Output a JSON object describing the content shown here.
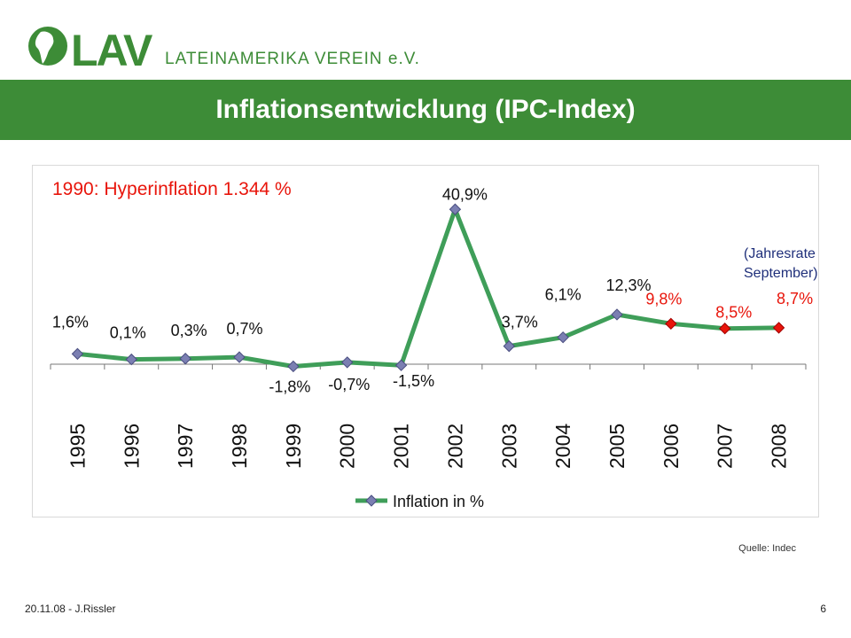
{
  "header": {
    "logo_text": "LAV",
    "org_name": "LATEINAMERIKA VEREIN e.V.",
    "title": "Inflationsentwicklung (IPC-Index)"
  },
  "colors": {
    "brand_green": "#3d8c37",
    "line_green": "#3f9e59",
    "marker_blue": "#7b7fb2",
    "highlight_red": "#e8150b"
  },
  "chart_data": {
    "type": "line",
    "title": "",
    "xlabel": "",
    "ylabel": "",
    "legend_position": "bottom",
    "grid": false,
    "categories": [
      "1995",
      "1996",
      "1997",
      "1998",
      "1999",
      "2000",
      "2001",
      "2002",
      "2003",
      "2004",
      "2005",
      "2006",
      "2007",
      "2008"
    ],
    "series": [
      {
        "name": "Inflation in  %",
        "values": [
          1.6,
          0.1,
          0.3,
          0.7,
          -1.8,
          -0.7,
          -1.5,
          40.9,
          3.7,
          6.1,
          12.3,
          9.8,
          8.5,
          8.7
        ],
        "labels": [
          "1,6%",
          "0,1%",
          "0,3%",
          "0,7%",
          "-1,8%",
          "-0,7%",
          "-1,5%",
          "40,9%",
          "3,7%",
          "6,1%",
          "12,3%",
          "9,8%",
          "8,5%",
          "8,7%"
        ],
        "highlighted_years": [
          "2006",
          "2007",
          "2008"
        ]
      }
    ],
    "annotations": [
      {
        "text": "1990: Hyperinflation 1.344 %",
        "color": "#e8150b"
      },
      {
        "text_line1": "(Jahresrate",
        "text_line2": "September)",
        "color": "#1f2f7a"
      }
    ]
  },
  "source": "Quelle: Indec",
  "footer": {
    "date_author": "20.11.08  - J.Rissler",
    "page_number": "6"
  }
}
